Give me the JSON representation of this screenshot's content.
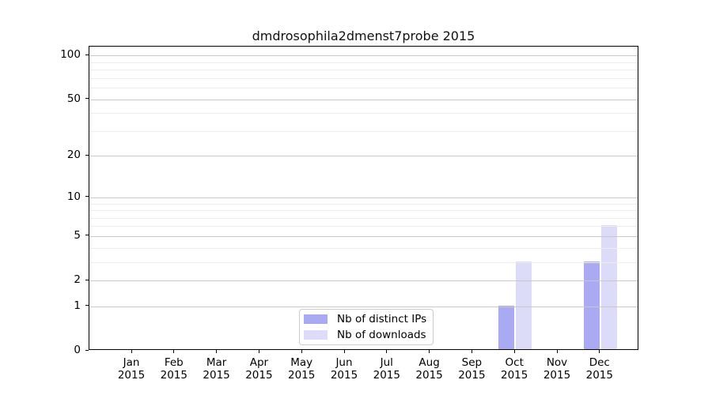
{
  "title": "dmdrosophila2dmenst7probe 2015",
  "chart_data": {
    "type": "bar",
    "title": "dmdrosophila2dmenst7probe 2015",
    "categories": [
      "Jan",
      "Feb",
      "Mar",
      "Apr",
      "May",
      "Jun",
      "Jul",
      "Aug",
      "Sep",
      "Oct",
      "Nov",
      "Dec"
    ],
    "year": "2015",
    "series": [
      {
        "name": "Nb of distinct IPs",
        "color": "#aaaaf2",
        "values": [
          0,
          0,
          0,
          0,
          0,
          0,
          0,
          0,
          0,
          1,
          0,
          3
        ]
      },
      {
        "name": "Nb of downloads",
        "color": "#dcdcf8",
        "values": [
          0,
          0,
          0,
          0,
          0,
          0,
          0,
          0,
          0,
          3,
          0,
          6
        ]
      }
    ],
    "yscale": "log10(value+1)",
    "yticks": [
      0,
      1,
      2,
      5,
      10,
      20,
      50,
      100
    ],
    "minor_yticks": [
      3,
      4,
      6,
      7,
      8,
      9,
      30,
      40,
      60,
      70,
      80,
      90
    ],
    "ylim": [
      0,
      115
    ],
    "grid": true,
    "legend_position": "bottom-center"
  },
  "legend": {
    "items": [
      {
        "label": "Nb of distinct IPs",
        "color": "#aaaaf2"
      },
      {
        "label": "Nb of downloads",
        "color": "#dcdcf8"
      }
    ]
  }
}
